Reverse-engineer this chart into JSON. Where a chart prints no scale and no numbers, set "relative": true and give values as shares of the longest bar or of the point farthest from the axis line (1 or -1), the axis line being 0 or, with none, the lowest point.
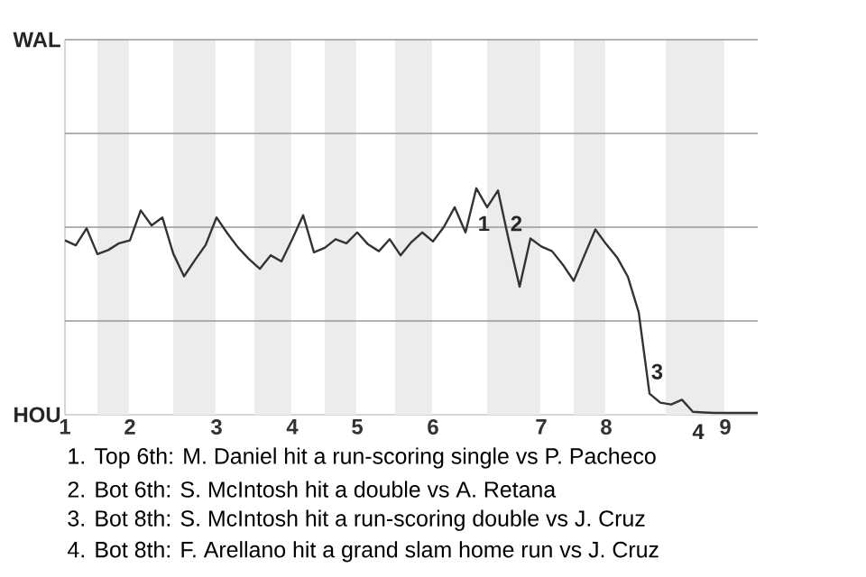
{
  "chart_data": {
    "type": "line",
    "color": "#333333",
    "categories": [
      "1",
      null,
      null,
      null,
      null,
      null,
      "2",
      null,
      null,
      null,
      null,
      null,
      null,
      null,
      "3",
      null,
      null,
      null,
      null,
      null,
      null,
      "4",
      null,
      null,
      null,
      null,
      null,
      "5",
      null,
      null,
      null,
      null,
      null,
      null,
      "6",
      null,
      null,
      null,
      null,
      null,
      null,
      null,
      null,
      null,
      "7",
      null,
      null,
      null,
      null,
      null,
      "8",
      null,
      null,
      null,
      null,
      null,
      null,
      null,
      null,
      null,
      null,
      "9",
      null,
      null,
      null
    ],
    "values": [
      0.77,
      0.748,
      0.823,
      0.709,
      0.727,
      0.757,
      0.77,
      0.902,
      0.836,
      0.871,
      0.712,
      0.611,
      0.682,
      0.75,
      0.871,
      0.801,
      0.738,
      0.687,
      0.644,
      0.704,
      0.677,
      0.775,
      0.881,
      0.717,
      0.737,
      0.775,
      0.757,
      0.805,
      0.752,
      0.722,
      0.775,
      0.704,
      0.762,
      0.805,
      0.765,
      0.829,
      0.916,
      0.805,
      1,
      0.916,
      0.99,
      0.77,
      0.565,
      0.778,
      0.743,
      0.722,
      0.662,
      0.591,
      0.705,
      0.818,
      0.753,
      0.695,
      0.609,
      0.452,
      0.093,
      0.053,
      0.045,
      0.066,
      0.013,
      0.01,
      0.008,
      0.008,
      0.008,
      0.008,
      0.008
    ],
    "relative": true,
    "ref_lines": [
      {
        "axis": "y",
        "value": 0.414,
        "color": "#999999"
      },
      {
        "axis": "y",
        "value": 0.828,
        "color": "#999999"
      },
      {
        "axis": "y",
        "value": 1.242,
        "color": "#999999"
      },
      {
        "axis": "y",
        "value": 1.656,
        "color": "#999999"
      }
    ],
    "annotations": [
      "WAL",
      "HOU",
      "1",
      "2",
      "3",
      "4",
      "1. Top 6th: M. Daniel hit a run-scoring single vs P. Pacheco",
      "2. Bot 6th: S. McIntosh hit a double vs A. Retana",
      "3. Bot 8th: S. McIntosh hit a run-scoring double vs J. Cruz",
      "4. Bot 8th: F. Arellano hit a grand slam home run vs J. Cruz"
    ]
  }
}
